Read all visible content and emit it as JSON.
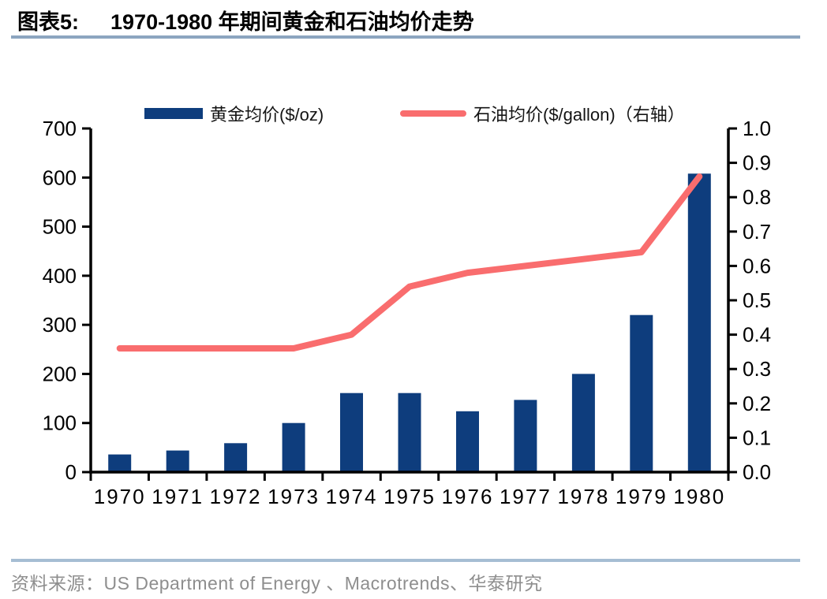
{
  "header": {
    "figure_label": "图表5:",
    "title": "1970-1980 年期间黄金和石油均价走势"
  },
  "legend": {
    "gold_label": "黄金均价($/oz)",
    "oil_label": "石油均价($/gallon)（右轴）"
  },
  "footer": {
    "source_text": "资料来源：US Department of Energy 、Macrotrends、华泰研究"
  },
  "colors": {
    "gold_bar": "#0e3d7d",
    "oil_line": "#f96d6e",
    "title_rule": "#8ca5c0",
    "footer_rule": "#a6bdd3",
    "footer_text": "#8e8e8e",
    "axis": "#000000"
  },
  "chart_data": {
    "type": "bar",
    "subtype": "combo-bar-line-dual-axis",
    "title": "1970-1980 年期间黄金和石油均价走势",
    "categories": [
      "1970",
      "1971",
      "1972",
      "1973",
      "1974",
      "1975",
      "1976",
      "1977",
      "1978",
      "1979",
      "1980"
    ],
    "series": [
      {
        "name": "黄金均价($/oz)",
        "type": "bar",
        "axis": "left",
        "color": "#0e3d7d",
        "values": [
          36,
          44,
          59,
          100,
          161,
          161,
          124,
          147,
          200,
          320,
          608
        ]
      },
      {
        "name": "石油均价($/gallon)（右轴）",
        "type": "line",
        "axis": "right",
        "color": "#f96d6e",
        "values": [
          0.36,
          0.36,
          0.36,
          0.36,
          0.4,
          0.54,
          0.58,
          0.6,
          0.62,
          0.64,
          0.86
        ]
      }
    ],
    "left_axis": {
      "min": 0,
      "max": 700,
      "step": 100,
      "ticks": [
        "0",
        "100",
        "200",
        "300",
        "400",
        "500",
        "600",
        "700"
      ]
    },
    "right_axis": {
      "min": 0,
      "max": 1.0,
      "step": 0.1,
      "ticks": [
        "0.0",
        "0.1",
        "0.2",
        "0.3",
        "0.4",
        "0.5",
        "0.6",
        "0.7",
        "0.8",
        "0.9",
        "1.0"
      ]
    },
    "xlabel": "",
    "ylabel": "",
    "grid": false,
    "legend_position": "top"
  }
}
